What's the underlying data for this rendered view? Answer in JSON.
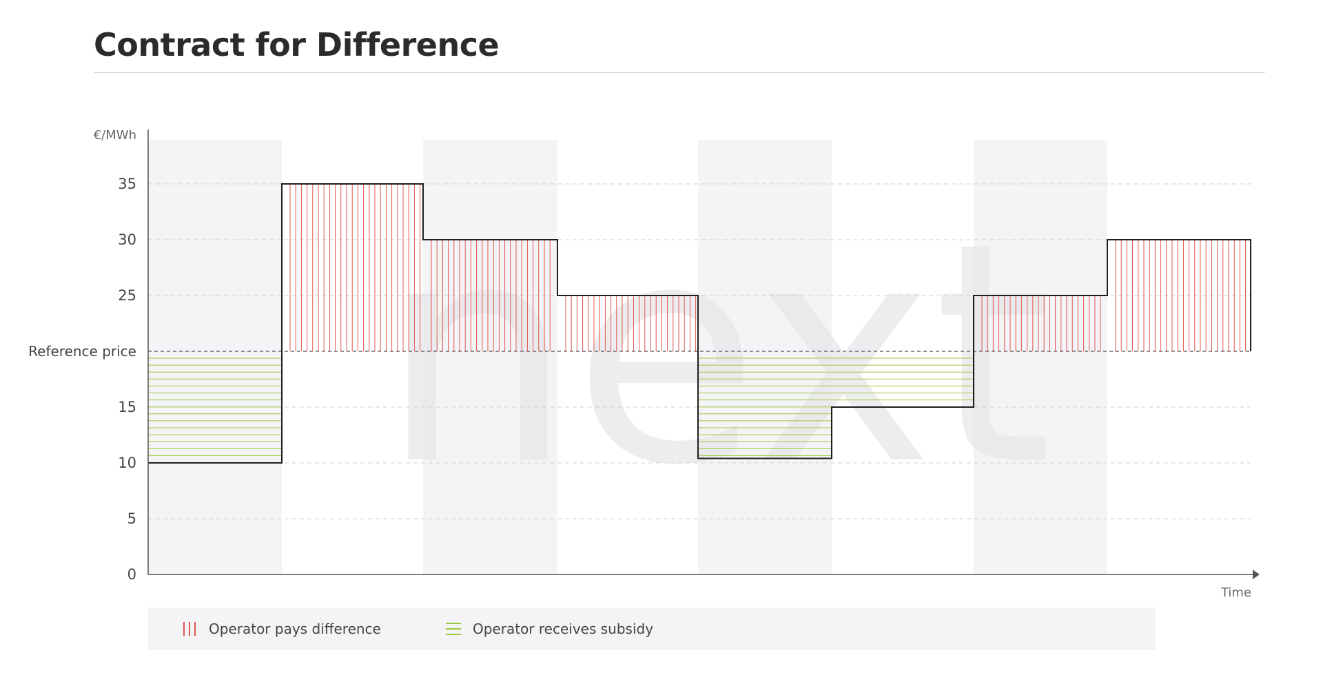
{
  "page": {
    "title": "Contract for Difference"
  },
  "watermark": "next",
  "chart_data": {
    "type": "step-area",
    "ylabel": "€/MWh",
    "xlabel": "Time",
    "ylim": [
      0,
      40
    ],
    "y_ticks": [
      "0",
      "5",
      "10",
      "15",
      "Reference price",
      "25",
      "30",
      "35"
    ],
    "y_tick_values": [
      0,
      5,
      10,
      15,
      20,
      25,
      30,
      35
    ],
    "reference_price": 20,
    "grid": true,
    "x_segments": [
      0,
      1,
      2,
      3,
      4,
      5,
      6,
      7,
      8
    ],
    "segments": [
      {
        "start": 0,
        "end": 1,
        "price": 10
      },
      {
        "start": 1,
        "end": 2,
        "price": 35
      },
      {
        "start": 2,
        "end": 3,
        "price": 30
      },
      {
        "start": 3,
        "end": 4,
        "price": 25
      },
      {
        "start": 4,
        "end": 5,
        "price": 10.4
      },
      {
        "start": 5,
        "end": 6,
        "price": 15
      },
      {
        "start": 6,
        "end": 7,
        "price": 25
      },
      {
        "start": 7,
        "end": 8,
        "price": 30
      }
    ],
    "legend": [
      {
        "label": "Operator pays difference",
        "pattern": "vertical-lines",
        "color": "#e0554f"
      },
      {
        "label": "Operator receives subsidy",
        "pattern": "horizontal-lines",
        "color": "#9cc83c"
      }
    ],
    "legend_position": "bottom"
  },
  "colors": {
    "pays": "#e0554f",
    "receives": "#9cc83c",
    "line": "#1e1e1e",
    "band": "#f4f4f6",
    "grid": "#cfcfcf"
  }
}
